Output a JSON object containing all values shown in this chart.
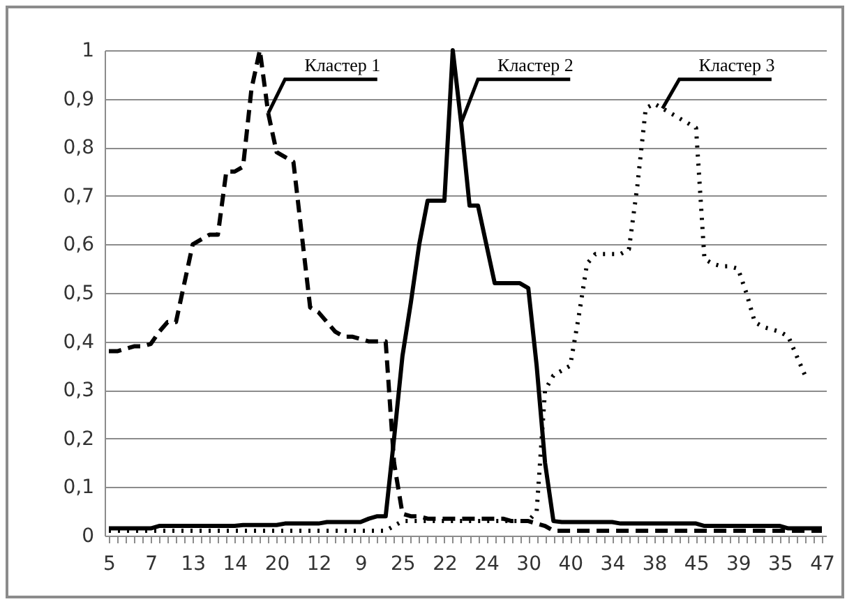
{
  "chart_data": {
    "type": "line",
    "categories": [
      "5",
      null,
      null,
      null,
      null,
      "7",
      null,
      null,
      null,
      null,
      "13",
      null,
      null,
      null,
      null,
      "14",
      null,
      null,
      null,
      null,
      "20",
      null,
      null,
      null,
      null,
      "12",
      null,
      null,
      null,
      null,
      "9",
      null,
      null,
      null,
      null,
      "25",
      null,
      null,
      null,
      null,
      "22",
      null,
      null,
      null,
      null,
      "24",
      null,
      null,
      null,
      null,
      "30",
      null,
      null,
      null,
      null,
      "40",
      null,
      null,
      null,
      null,
      "34",
      null,
      null,
      null,
      null,
      "38",
      null,
      null,
      null,
      null,
      "45",
      null,
      null,
      null,
      null,
      "39",
      null,
      null,
      null,
      null,
      "35",
      null,
      null,
      null,
      null,
      "47"
    ],
    "series": [
      {
        "name": "Кластер 1",
        "color": "#000000",
        "line_style": "dashed",
        "values": [
          0.38,
          0.38,
          0.385,
          0.39,
          0.39,
          0.395,
          0.42,
          0.44,
          0.44,
          0.52,
          0.6,
          0.61,
          0.62,
          0.62,
          0.75,
          0.75,
          0.76,
          0.92,
          1.0,
          0.87,
          0.79,
          0.78,
          0.77,
          0.62,
          0.47,
          0.46,
          0.44,
          0.42,
          0.41,
          0.41,
          0.405,
          0.4,
          0.4,
          0.4,
          0.15,
          0.045,
          0.04,
          0.04,
          0.035,
          0.035,
          0.035,
          0.035,
          0.035,
          0.035,
          0.035,
          0.035,
          0.035,
          0.035,
          0.03,
          0.03,
          0.03,
          0.025,
          0.02,
          0.01,
          0.01,
          0.01,
          0.01,
          0.01,
          0.01,
          0.01,
          0.01,
          0.01,
          0.01,
          0.01,
          0.01,
          0.01,
          0.01,
          0.01,
          0.01,
          0.01,
          0.01,
          0.01,
          0.01,
          0.01,
          0.01,
          0.01,
          0.01,
          0.01,
          0.01,
          0.01,
          0.01,
          0.01,
          0.01,
          0.01,
          0.01,
          0.01
        ]
      },
      {
        "name": "Кластер 2",
        "color": "#000000",
        "line_style": "solid",
        "values": [
          0.015,
          0.015,
          0.015,
          0.015,
          0.015,
          0.015,
          0.02,
          0.02,
          0.02,
          0.02,
          0.02,
          0.02,
          0.02,
          0.02,
          0.02,
          0.02,
          0.022,
          0.022,
          0.022,
          0.022,
          0.022,
          0.025,
          0.025,
          0.025,
          0.025,
          0.025,
          0.028,
          0.028,
          0.028,
          0.028,
          0.028,
          0.035,
          0.04,
          0.04,
          0.2,
          0.37,
          0.48,
          0.6,
          0.69,
          0.69,
          0.69,
          1.0,
          0.85,
          0.68,
          0.68,
          0.6,
          0.52,
          0.52,
          0.52,
          0.52,
          0.51,
          0.35,
          0.15,
          0.03,
          0.028,
          0.028,
          0.028,
          0.028,
          0.028,
          0.028,
          0.028,
          0.025,
          0.025,
          0.025,
          0.025,
          0.025,
          0.025,
          0.025,
          0.025,
          0.025,
          0.025,
          0.02,
          0.02,
          0.02,
          0.02,
          0.02,
          0.02,
          0.02,
          0.02,
          0.02,
          0.02,
          0.015,
          0.015,
          0.015,
          0.015,
          0.015
        ]
      },
      {
        "name": "Кластер 3",
        "color": "#000000",
        "line_style": "dotted",
        "values": [
          0.01,
          0.01,
          0.01,
          0.01,
          0.01,
          0.01,
          0.01,
          0.01,
          0.01,
          0.01,
          0.01,
          0.01,
          0.01,
          0.01,
          0.01,
          0.01,
          0.01,
          0.01,
          0.01,
          0.01,
          0.01,
          0.01,
          0.01,
          0.01,
          0.01,
          0.01,
          0.01,
          0.01,
          0.01,
          0.01,
          0.01,
          0.01,
          0.01,
          0.01,
          0.02,
          0.03,
          0.03,
          0.03,
          0.03,
          0.03,
          0.03,
          0.03,
          0.03,
          0.03,
          0.03,
          0.03,
          0.03,
          0.03,
          0.03,
          0.03,
          0.03,
          0.05,
          0.3,
          0.33,
          0.34,
          0.35,
          0.45,
          0.56,
          0.58,
          0.58,
          0.58,
          0.58,
          0.59,
          0.72,
          0.88,
          0.89,
          0.88,
          0.87,
          0.86,
          0.85,
          0.84,
          0.57,
          0.56,
          0.555,
          0.555,
          0.55,
          0.5,
          0.44,
          0.43,
          0.425,
          0.42,
          0.41,
          0.37,
          0.33,
          null,
          null
        ]
      }
    ],
    "ylim": [
      0,
      1
    ],
    "yticks": [
      0,
      {
        "value": 0.1,
        "label": "0,1"
      },
      {
        "value": 0.2,
        "label": "0,2"
      },
      {
        "value": 0.3,
        "label": "0,3"
      },
      {
        "value": 0.4,
        "label": "0,4"
      },
      {
        "value": 0.5,
        "label": "0,5"
      },
      {
        "value": 0.6,
        "label": "0,6"
      },
      {
        "value": 0.7,
        "label": "0,7"
      },
      {
        "value": 0.8,
        "label": "0,8"
      },
      {
        "value": 0.9,
        "label": "0,9"
      },
      1
    ],
    "grid": "y",
    "legend": false
  }
}
